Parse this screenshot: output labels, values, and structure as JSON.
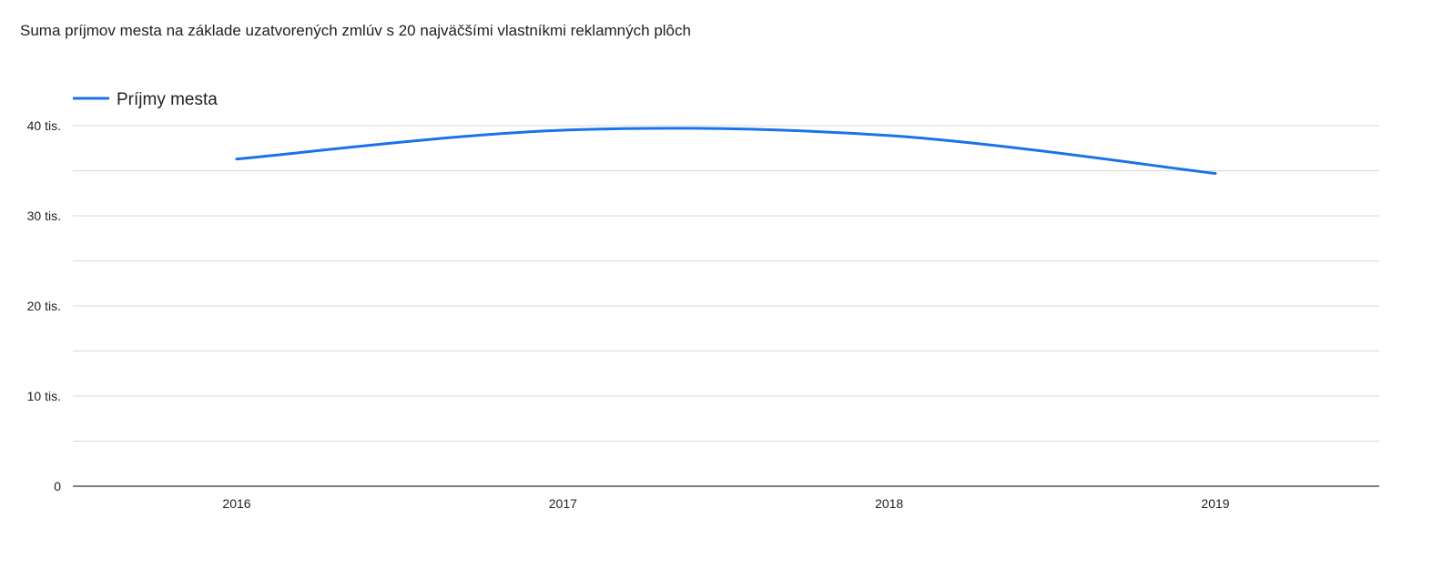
{
  "chart_data": {
    "type": "line",
    "title": "Suma príjmov mesta na základe uzatvorených zmlúv s 20 najväčšími vlastníkmi reklamných plôch",
    "xlabel": "",
    "ylabel": "",
    "categories": [
      "2016",
      "2017",
      "2018",
      "2019"
    ],
    "series": [
      {
        "name": "Príjmy mesta",
        "values": [
          36300,
          39500,
          38900,
          34700
        ],
        "color": "#1a73e8"
      }
    ],
    "ylim": [
      0,
      40000
    ],
    "yticks": [
      {
        "value": 0,
        "label": "0"
      },
      {
        "value": 10000,
        "label": "10 tis."
      },
      {
        "value": 20000,
        "label": "20 tis."
      },
      {
        "value": 30000,
        "label": "30 tis."
      },
      {
        "value": 40000,
        "label": "40 tis."
      }
    ],
    "minor_grid_step": 5000,
    "grid": true,
    "smooth": true,
    "legend_position": "top-left"
  }
}
